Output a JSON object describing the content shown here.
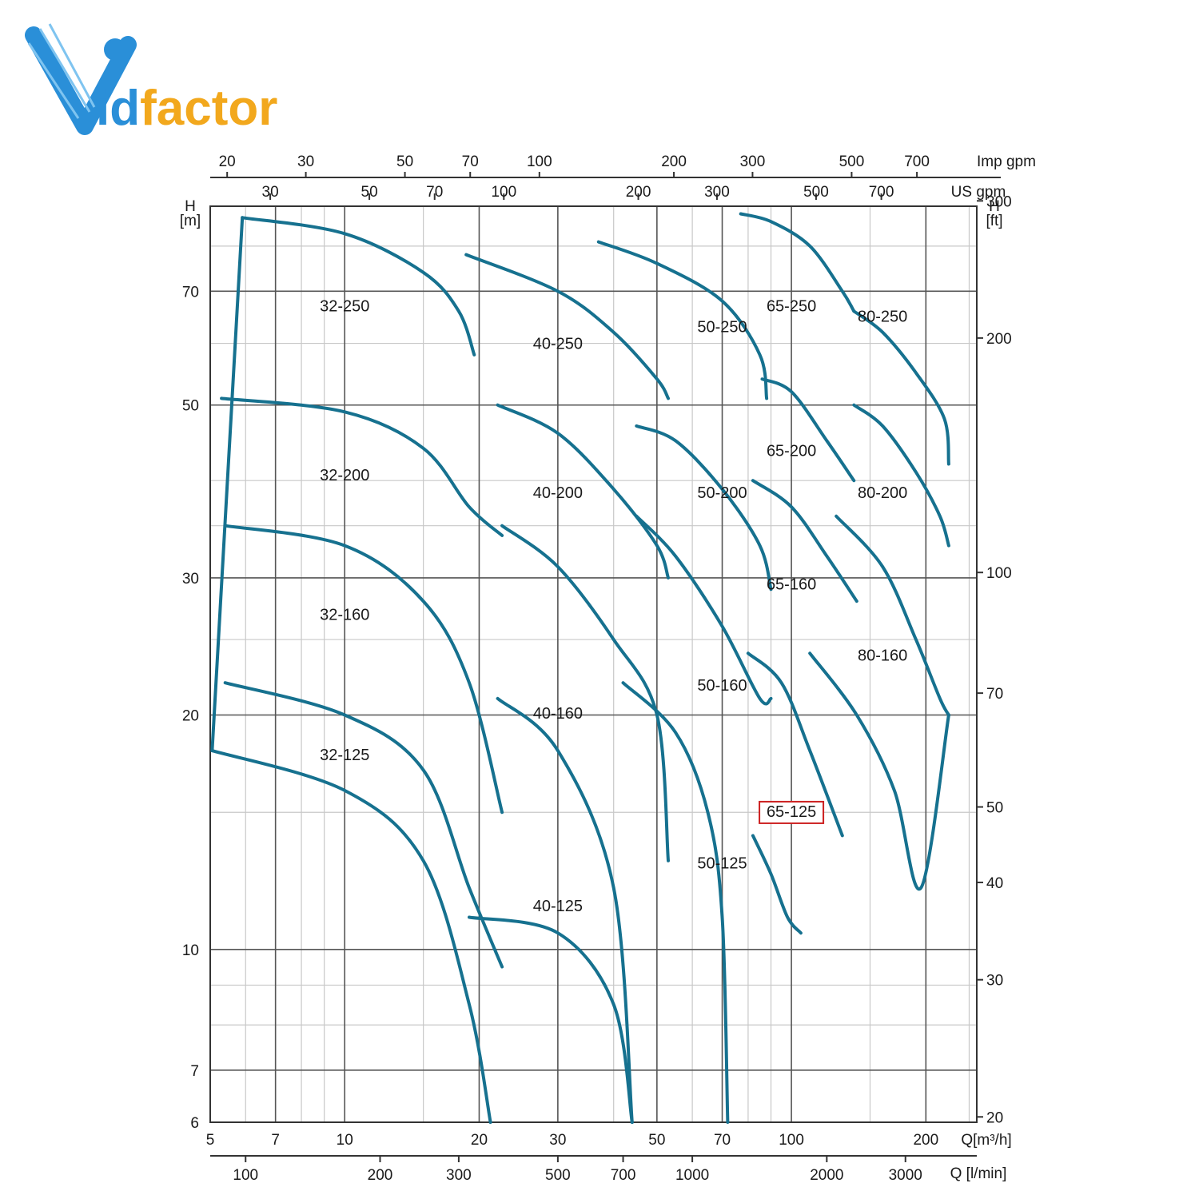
{
  "logo": {
    "text": "idfactor",
    "mark": "V",
    "primary_color": "#2a8fd8",
    "secondary_color": "#f2a81d"
  },
  "chart_data": {
    "type": "line",
    "title": "",
    "x_scale": "log",
    "y_scale": "log",
    "xlabel": "Q[m³/h]",
    "x2label": "Q [l/min]",
    "top_axis_1_label": "Imp gpm",
    "top_axis_2_label": "US gpm",
    "ylabel": "H [m]",
    "y2label": "H [ft]",
    "xlim": [
      5,
      260
    ],
    "ylim": [
      6,
      90
    ],
    "grid": true,
    "curve_color": "#16718f",
    "highlight_color": "#cc1f1f",
    "x_ticks": [
      "5",
      "7",
      "10",
      "20",
      "30",
      "50",
      "70",
      "100",
      "200"
    ],
    "y_ticks": [
      "6",
      "7",
      "10",
      "20",
      "30",
      "50",
      "70"
    ],
    "lpm_ticks": [
      "100",
      "200",
      "300",
      "500",
      "700",
      "1000",
      "2000",
      "3000"
    ],
    "imp_gpm_ticks": [
      "20",
      "30",
      "50",
      "70",
      "100",
      "200",
      "300",
      "500",
      "700"
    ],
    "us_gpm_ticks": [
      "30",
      "50",
      "70",
      "100",
      "200",
      "300",
      "500",
      "700"
    ],
    "ft_ticks": [
      "20",
      "30",
      "40",
      "50",
      "70",
      "100",
      "200",
      "300"
    ],
    "h_axis_marker": "H",
    "m_unit": "[m]",
    "ft_unit": "[ft]",
    "regions": [
      {
        "label": "32-250",
        "label_at": [
          10,
          66
        ]
      },
      {
        "label": "32-200",
        "label_at": [
          10,
          40
        ]
      },
      {
        "label": "32-160",
        "label_at": [
          10,
          26.5
        ]
      },
      {
        "label": "32-125",
        "label_at": [
          10,
          17.5
        ]
      },
      {
        "label": "40-250",
        "label_at": [
          30,
          59
        ]
      },
      {
        "label": "40-200",
        "label_at": [
          30,
          38
        ]
      },
      {
        "label": "40-160",
        "label_at": [
          30,
          19.8
        ]
      },
      {
        "label": "40-125",
        "label_at": [
          30,
          11.2
        ]
      },
      {
        "label": "50-250",
        "label_at": [
          70,
          62
        ]
      },
      {
        "label": "50-200",
        "label_at": [
          70,
          38
        ]
      },
      {
        "label": "50-160",
        "label_at": [
          70,
          21.5
        ]
      },
      {
        "label": "50-125",
        "label_at": [
          70,
          12.7
        ]
      },
      {
        "label": "65-250",
        "label_at": [
          100,
          66
        ]
      },
      {
        "label": "65-200",
        "label_at": [
          100,
          43
        ]
      },
      {
        "label": "65-160",
        "label_at": [
          100,
          29
        ]
      },
      {
        "label": "65-125",
        "label_at": [
          100,
          14.8
        ],
        "highlighted": true
      },
      {
        "label": "80-250",
        "label_at": [
          160,
          64
        ]
      },
      {
        "label": "80-200",
        "label_at": [
          160,
          38
        ]
      },
      {
        "label": "80-160",
        "label_at": [
          160,
          23.5
        ]
      }
    ],
    "series": [
      {
        "id": "left-boundary",
        "x": [
          5.9,
          5.05
        ],
        "y": [
          87,
          18
        ]
      },
      {
        "id": "32-250",
        "x": [
          5.9,
          10,
          15,
          18,
          19.5
        ],
        "y": [
          87,
          83,
          74,
          66,
          58
        ]
      },
      {
        "id": "32-200",
        "x": [
          5.3,
          10,
          15,
          19,
          22.5
        ],
        "y": [
          51,
          49,
          44,
          37,
          34
        ]
      },
      {
        "id": "32-160",
        "x": [
          5.4,
          10,
          15,
          19,
          22.5
        ],
        "y": [
          35,
          33,
          28,
          22,
          15
        ]
      },
      {
        "id": "32-125",
        "x": [
          5.4,
          10,
          15,
          19,
          22.5
        ],
        "y": [
          22,
          20,
          17,
          12,
          9.5
        ]
      },
      {
        "id": "32-bottom",
        "x": [
          5.05,
          10,
          15,
          19,
          21.2
        ],
        "y": [
          18,
          16,
          13,
          8.5,
          6
        ]
      },
      {
        "id": "40-250",
        "x": [
          18.7,
          30,
          40,
          50,
          53
        ],
        "y": [
          78,
          70,
          62,
          54,
          51
        ]
      },
      {
        "id": "40-200",
        "x": [
          22,
          30,
          40,
          50,
          53
        ],
        "y": [
          50,
          46,
          39,
          33,
          30
        ]
      },
      {
        "id": "40-160",
        "x": [
          22.5,
          30,
          40,
          50,
          53
        ],
        "y": [
          35,
          31,
          25,
          20,
          13
        ]
      },
      {
        "id": "40-125",
        "x": [
          22,
          30,
          40,
          44
        ],
        "y": [
          21,
          18,
          12,
          6
        ]
      },
      {
        "id": "40-bottom",
        "x": [
          19,
          30,
          40,
          44
        ],
        "y": [
          11,
          10.5,
          8.5,
          6
        ]
      },
      {
        "id": "50-250",
        "x": [
          37,
          50,
          70,
          85,
          88
        ],
        "y": [
          81,
          76,
          68,
          58,
          51
        ]
      },
      {
        "id": "50-200",
        "x": [
          45,
          55,
          70,
          85,
          90
        ],
        "y": [
          47,
          45,
          39,
          33,
          29
        ]
      },
      {
        "id": "50-160",
        "x": [
          45,
          55,
          70,
          85,
          90
        ],
        "y": [
          36,
          32,
          26,
          21,
          21
        ]
      },
      {
        "id": "50-125",
        "x": [
          42,
          55,
          65,
          70,
          72
        ],
        "y": [
          22,
          19,
          15,
          11,
          6
        ]
      },
      {
        "id": "65-250",
        "x": [
          77,
          90,
          110,
          130,
          138
        ],
        "y": [
          88,
          86,
          80,
          70,
          66
        ]
      },
      {
        "id": "65-200",
        "x": [
          86,
          100,
          120,
          138
        ],
        "y": [
          54,
          52,
          45,
          40
        ]
      },
      {
        "id": "65-160",
        "x": [
          82,
          100,
          120,
          140
        ],
        "y": [
          40,
          37,
          32,
          28
        ]
      },
      {
        "id": "65-125",
        "x": [
          80,
          95,
          110,
          130
        ],
        "y": [
          24,
          22,
          18,
          14
        ]
      },
      {
        "id": "65-bottom",
        "x": [
          82,
          90,
          98,
          105
        ],
        "y": [
          14,
          12.5,
          11,
          10.5
        ]
      },
      {
        "id": "80-250",
        "x": [
          138,
          160,
          190,
          220,
          225
        ],
        "y": [
          66,
          62,
          55,
          48,
          42
        ]
      },
      {
        "id": "80-200",
        "x": [
          138,
          160,
          190,
          215,
          225
        ],
        "y": [
          50,
          47,
          41,
          36,
          33
        ]
      },
      {
        "id": "80-160",
        "x": [
          126,
          160,
          190,
          215,
          225
        ],
        "y": [
          36,
          31,
          25,
          21,
          20
        ]
      },
      {
        "id": "80-bottom",
        "x": [
          110,
          140,
          170,
          195,
          225
        ],
        "y": [
          24,
          20,
          16,
          12,
          20
        ]
      }
    ]
  }
}
